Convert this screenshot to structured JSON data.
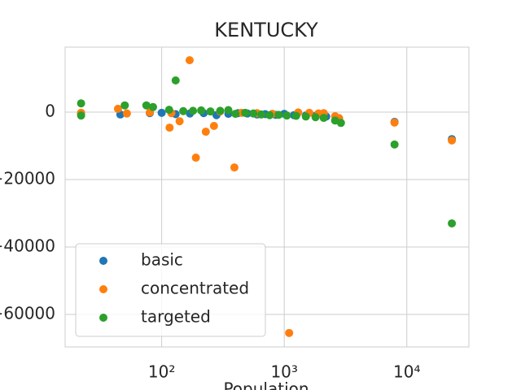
{
  "chart_data": {
    "type": "scatter",
    "title": "KENTUCKY",
    "x_label": "Population",
    "x_scale": "log",
    "grid": true,
    "legend_position": "lower left",
    "xlim": [
      16.3,
      32100
    ],
    "ylim": [
      -69640,
      19280
    ],
    "xticks": [
      {
        "value": 100,
        "label": "10²"
      },
      {
        "value": 1000,
        "label": "10³"
      },
      {
        "value": 10000,
        "label": "10⁴"
      }
    ],
    "yticks": [
      {
        "value": -60000,
        "label": "−60000"
      },
      {
        "value": -40000,
        "label": "−40000"
      },
      {
        "value": -20000,
        "label": "−20000"
      },
      0
    ],
    "series": [
      {
        "name": "basic",
        "color": "#1f77b4",
        "x": [
          22,
          46,
          80,
          100,
          130,
          170,
          220,
          280,
          350,
          420,
          500,
          600,
          700,
          850,
          1000,
          1200,
          1500,
          1800,
          2200,
          2800,
          7940,
          23300
        ],
        "values": [
          -500,
          -700,
          -300,
          -200,
          -600,
          -400,
          -300,
          -900,
          -500,
          -300,
          -400,
          -700,
          -600,
          -800,
          -500,
          -900,
          -1000,
          -1100,
          -1300,
          -1800,
          -2900,
          -8000
        ]
      },
      {
        "name": "concentrated",
        "color": "#ff7f0e",
        "x": [
          22,
          44,
          52,
          80,
          116,
          120,
          140,
          169,
          190,
          229,
          267,
          300,
          392,
          450,
          600,
          800,
          1096,
          1300,
          1600,
          1900,
          2100,
          2600,
          2800,
          7940,
          23300
        ],
        "values": [
          -200,
          1000,
          -400,
          -100,
          -4600,
          -300,
          -2700,
          15400,
          -13500,
          -5800,
          -4100,
          200,
          -16400,
          -200,
          -300,
          -500,
          -65500,
          -100,
          -200,
          -400,
          -300,
          -1200,
          -1800,
          -3100,
          -8400
        ]
      },
      {
        "name": "targeted",
        "color": "#2ca02c",
        "x": [
          22,
          22,
          50,
          75,
          85,
          115,
          130,
          150,
          180,
          210,
          250,
          300,
          350,
          400,
          480,
          560,
          650,
          760,
          900,
          1050,
          1250,
          1500,
          1800,
          2100,
          2600,
          2900,
          7940,
          23300
        ],
        "values": [
          2600,
          -1000,
          2000,
          2000,
          1500,
          700,
          9400,
          300,
          400,
          500,
          200,
          400,
          600,
          -500,
          -200,
          -400,
          -700,
          -900,
          -800,
          -1000,
          -1100,
          -1300,
          -1500,
          -1700,
          -2500,
          -3200,
          -9600,
          -33000
        ]
      }
    ]
  }
}
